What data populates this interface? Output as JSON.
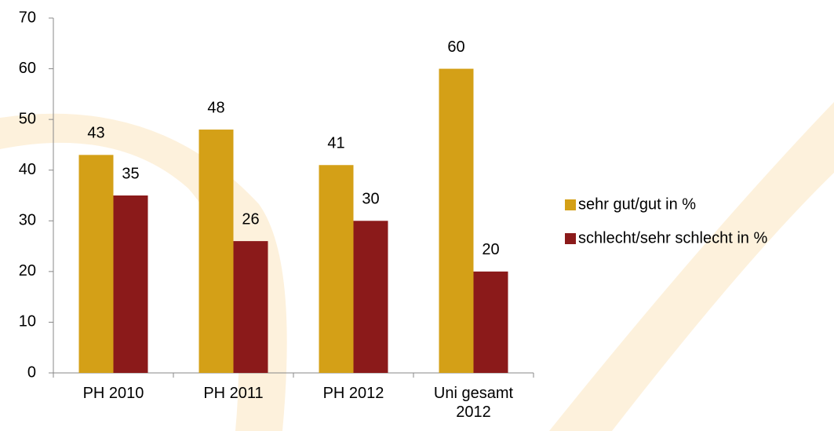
{
  "chart_data": {
    "type": "bar",
    "categories": [
      "PH 2010",
      "PH 2011",
      "PH 2012",
      "Uni gesamt 2012"
    ],
    "series": [
      {
        "name": "sehr gut/gut in %",
        "color": "#d4a017",
        "values": [
          43,
          48,
          41,
          60
        ]
      },
      {
        "name": "schlecht/sehr schlecht in %",
        "color": "#8b1a1a",
        "values": [
          35,
          26,
          30,
          20
        ]
      }
    ],
    "ylim": [
      0,
      70
    ],
    "yticks": [
      0,
      10,
      20,
      30,
      40,
      50,
      60,
      70
    ],
    "grid": false,
    "legend": "right"
  }
}
